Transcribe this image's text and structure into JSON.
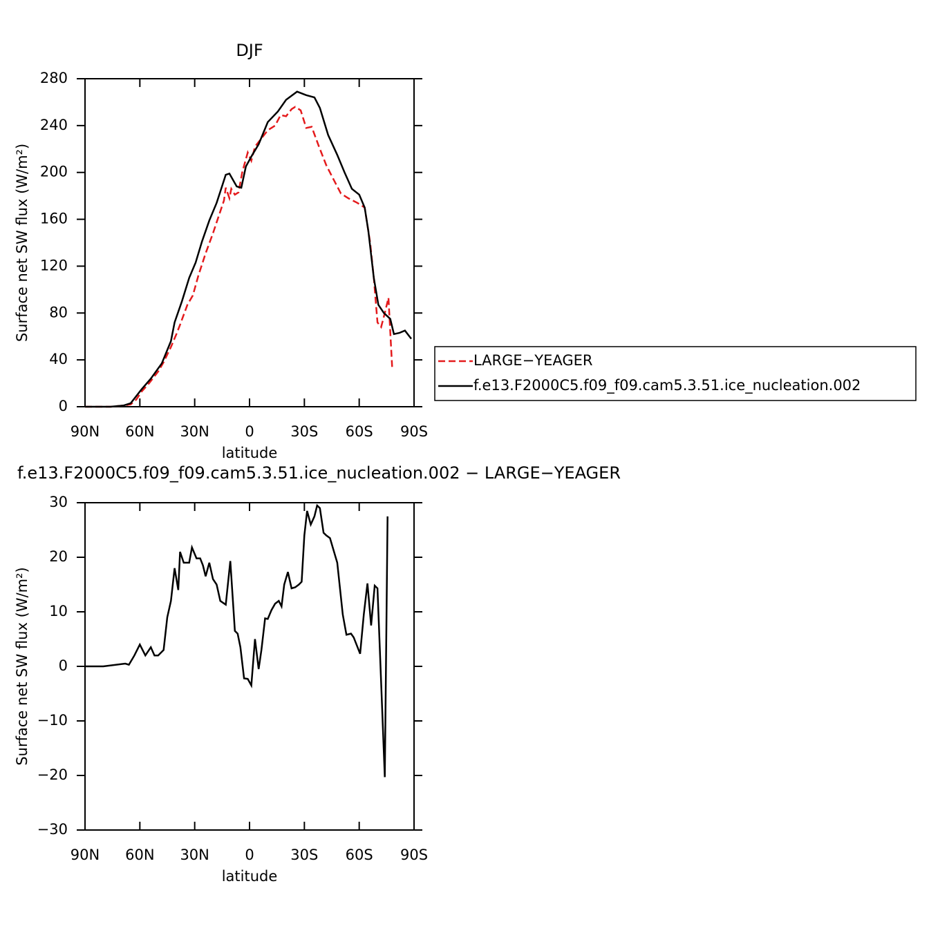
{
  "chart_data": [
    {
      "type": "line",
      "title": "DJF",
      "xlabel": "latitude",
      "ylabel": "Surface net SW flux (W/m²)",
      "xlim": [
        90,
        -90
      ],
      "xticks": [
        {
          "value": 90,
          "label": "90N"
        },
        {
          "value": 60,
          "label": "60N"
        },
        {
          "value": 30,
          "label": "30N"
        },
        0,
        {
          "value": -30,
          "label": "30S"
        },
        {
          "value": -60,
          "label": "60S"
        },
        {
          "value": -90,
          "label": "90S"
        }
      ],
      "ylim": [
        0,
        280
      ],
      "yticks": [
        0,
        40,
        80,
        120,
        160,
        200,
        240,
        280
      ],
      "legend": "right",
      "series": [
        {
          "name": "LARGE−YEAGER",
          "color": "#e41a1c",
          "dash": true,
          "x": [
            90,
            76,
            69,
            65,
            62,
            59,
            55,
            50,
            47,
            43,
            40,
            38,
            34,
            31,
            28,
            24,
            20,
            17,
            14,
            13,
            11,
            10,
            8,
            6,
            4,
            1,
            -1,
            -3,
            -7,
            -10,
            -14,
            -17,
            -20,
            -23,
            -25,
            -28,
            -31,
            -34,
            -38,
            -42,
            -46,
            -50,
            -54,
            -59,
            -63,
            -66,
            -68,
            -70,
            -72,
            -74,
            -76,
            -78
          ],
          "values": [
            0,
            0,
            1,
            2,
            6,
            13,
            20,
            30,
            38,
            51,
            62,
            70,
            87,
            95,
            112,
            131,
            148,
            162,
            176,
            187,
            178,
            186,
            181,
            183,
            200,
            217,
            210,
            222,
            230,
            236,
            240,
            249,
            248,
            254,
            256,
            253,
            238,
            239,
            222,
            206,
            194,
            182,
            178,
            174,
            170,
            140,
            110,
            72,
            68,
            80,
            93,
            34
          ]
        },
        {
          "name": "f.e13.F2000C5.f09_f09.cam5.3.51.ice_nucleation.002",
          "color": "#000000",
          "dash": false,
          "x": [
            90,
            76,
            69,
            65,
            63,
            59,
            54,
            48,
            43,
            41,
            37,
            33,
            29.5,
            26,
            22,
            18,
            15.5,
            13,
            11,
            7,
            4.5,
            2,
            -1.5,
            -5,
            -10,
            -15.5,
            -20,
            -26,
            -31,
            -35.5,
            -38.5,
            -43,
            -48,
            -52,
            -56,
            -60,
            -63,
            -65,
            -68,
            -70.5,
            -73.5,
            -77,
            -79,
            -82,
            -85,
            -88.5
          ],
          "values": [
            0,
            0,
            1,
            3,
            7,
            15,
            24,
            37,
            56,
            72,
            90,
            110,
            123,
            141,
            159,
            174,
            186,
            198,
            199,
            188,
            187,
            205,
            215,
            224,
            243,
            252,
            262,
            269,
            266,
            264,
            255,
            232,
            215,
            200,
            186,
            181,
            170,
            150,
            110,
            87,
            80,
            75,
            62,
            63,
            65,
            58
          ]
        }
      ]
    },
    {
      "type": "line",
      "title": "f.e13.F2000C5.f09_f09.cam5.3.51.ice_nucleation.002 − LARGE−YEAGER",
      "xlabel": "latitude",
      "ylabel": "Surface net SW flux (W/m²)",
      "xlim": [
        90,
        -90
      ],
      "xticks": [
        {
          "value": 90,
          "label": "90N"
        },
        {
          "value": 60,
          "label": "60N"
        },
        {
          "value": 30,
          "label": "30N"
        },
        0,
        {
          "value": -30,
          "label": "30S"
        },
        {
          "value": -60,
          "label": "60S"
        },
        {
          "value": -90,
          "label": "90S"
        }
      ],
      "ylim": [
        -30,
        30
      ],
      "yticks": [
        {
          "value": -30,
          "label": "−30"
        },
        {
          "value": -20,
          "label": "−20"
        },
        {
          "value": -10,
          "label": "−10"
        },
        0,
        10,
        20,
        30
      ],
      "series": [
        {
          "color": "#000000",
          "dash": false,
          "x": [
            90,
            80,
            68,
            66,
            63,
            60,
            57,
            54,
            52,
            50,
            47,
            45,
            43,
            41,
            39,
            38,
            36,
            33,
            31.5,
            29,
            27,
            25.5,
            24,
            22,
            20,
            18,
            16,
            13,
            10.5,
            8,
            6.5,
            5,
            3,
            1,
            -1,
            -3,
            -5,
            -6.5,
            -8.5,
            -10,
            -12,
            -14,
            -16,
            -17.5,
            -19,
            -21,
            -23,
            -25,
            -27,
            -28.5,
            -30,
            -31.5,
            -33.5,
            -35.5,
            -37,
            -38.5,
            -40.5,
            -42,
            -44,
            -48,
            -51,
            -53,
            -55.5,
            -57,
            -60.5,
            -62.5,
            -64.5,
            -66.5,
            -68.5,
            -70,
            -74,
            -75.5
          ],
          "values": [
            0,
            0,
            0.5,
            0.3,
            2,
            4,
            2,
            3.5,
            2,
            2,
            3,
            9,
            12,
            18,
            14,
            21,
            19,
            19,
            21.8,
            19.8,
            19.8,
            18.5,
            16.5,
            19,
            16,
            15,
            12,
            11.3,
            19.3,
            6.5,
            6,
            3.5,
            -2.2,
            -2.3,
            -3.5,
            5,
            -0.5,
            3,
            8.8,
            8.7,
            10.3,
            11.5,
            12,
            11,
            15,
            17.3,
            14.3,
            14.5,
            15,
            15.5,
            24,
            28.5,
            26,
            27.5,
            29.5,
            29,
            24.5,
            24,
            23.5,
            19,
            9.5,
            5.8,
            6,
            5.3,
            2.3,
            9.5,
            15.2,
            7.5,
            14.8,
            14.3,
            -20.3,
            27.5
          ]
        }
      ]
    }
  ]
}
